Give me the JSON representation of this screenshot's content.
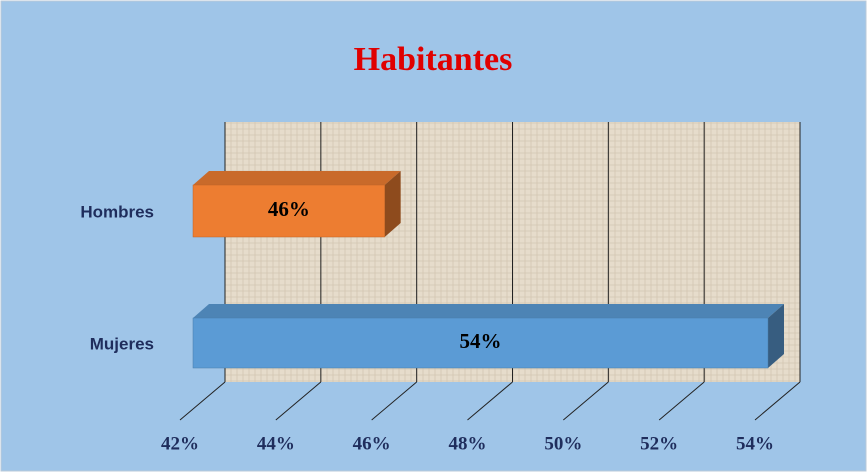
{
  "chart_data": {
    "type": "bar3d-horizontal",
    "title": "Habitantes",
    "categories": [
      "Hombres",
      "Mujeres"
    ],
    "values": [
      46,
      54
    ],
    "value_labels": [
      "46%",
      "54%"
    ],
    "colors": [
      "#ed7d31",
      "#5b9bd5"
    ],
    "xlim": [
      42,
      54
    ],
    "xticks": [
      {
        "value": 42,
        "label": "42%"
      },
      {
        "value": 44,
        "label": "44%"
      },
      {
        "value": 46,
        "label": "46%"
      },
      {
        "value": 48,
        "label": "48%"
      },
      {
        "value": 50,
        "label": "50%"
      },
      {
        "value": 52,
        "label": "52%"
      },
      {
        "value": 54,
        "label": "54%"
      }
    ],
    "grid": true
  }
}
